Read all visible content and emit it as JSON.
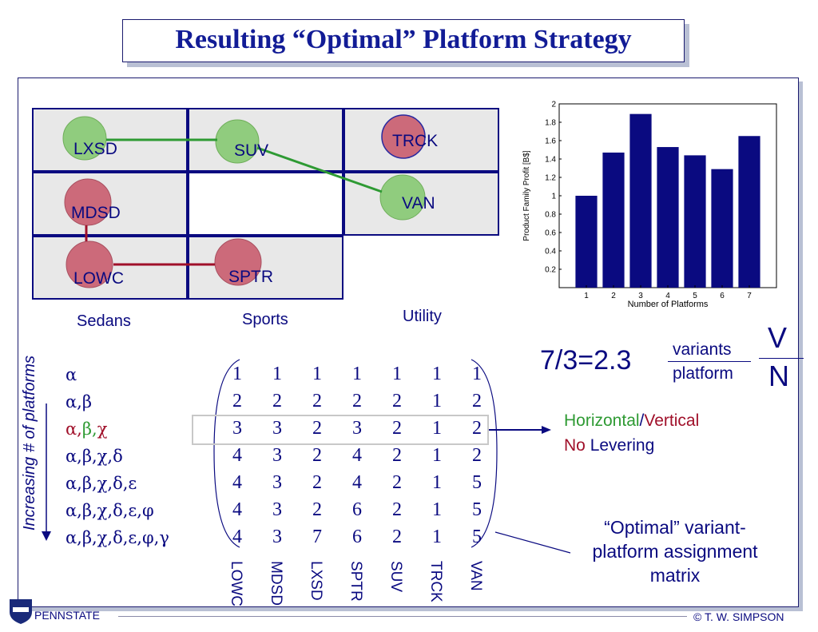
{
  "title": "Resulting “Optimal” Platform Strategy",
  "grid": {
    "nodes": [
      "LXSD",
      "SUV",
      "TRCK",
      "MDSD",
      "VAN",
      "LOWC",
      "SPTR"
    ],
    "categories": [
      "Sedans",
      "Sports",
      "Utility"
    ]
  },
  "chart_data": {
    "type": "bar",
    "categories": [
      "1",
      "2",
      "3",
      "4",
      "5",
      "6",
      "7"
    ],
    "values": [
      1.0,
      1.47,
      1.89,
      1.53,
      1.44,
      1.29,
      1.65
    ],
    "xlabel": "Number of Platforms",
    "ylabel": "Product Family Profit [B$]",
    "ylim": [
      0,
      2
    ],
    "yticks": [
      "0.2",
      "0.4",
      "0.6",
      "0.8",
      "1",
      "1.2",
      "1.4",
      "1.6",
      "1.8",
      "2"
    ],
    "bar_color": "#0a0a80"
  },
  "ratio": {
    "expr": "7/3=2.3",
    "numerator": "variants",
    "denominator": "platform",
    "v": "V",
    "n": "N"
  },
  "side_label": "Increasing # of platforms",
  "greek_rows": [
    "α",
    "α,β",
    "α,β,χ",
    "α,β,χ,δ",
    "α,β,χ,δ,ε",
    "α,β,χ,δ,ε,φ",
    "α,β,χ,δ,ε,φ,γ"
  ],
  "matrix": {
    "rows": [
      [
        "1",
        "1",
        "1",
        "1",
        "1",
        "1",
        "1"
      ],
      [
        "2",
        "2",
        "2",
        "2",
        "2",
        "1",
        "2"
      ],
      [
        "3",
        "3",
        "2",
        "3",
        "2",
        "1",
        "2"
      ],
      [
        "4",
        "3",
        "2",
        "4",
        "2",
        "1",
        "2"
      ],
      [
        "4",
        "3",
        "2",
        "4",
        "2",
        "1",
        "5"
      ],
      [
        "4",
        "3",
        "2",
        "6",
        "2",
        "1",
        "5"
      ],
      [
        "4",
        "3",
        "7",
        "6",
        "2",
        "1",
        "5"
      ]
    ],
    "columns": [
      "LOWC",
      "MDSD",
      "LXSD",
      "SPTR",
      "SUV",
      "TRCK",
      "VAN"
    ]
  },
  "callout": {
    "horizontal": "Horizontal",
    "slash": "/",
    "vertical": "Vertical",
    "no": "No",
    "levering": " Levering",
    "optimal_1": "“Optimal” variant-",
    "optimal_2": "platform assignment",
    "optimal_3": "matrix"
  },
  "footer": {
    "pennstate": "PENNSTATE",
    "copyright": "© T. W. SIMPSON"
  },
  "colors": {
    "navy": "#0a0a80",
    "green": "#2e9a33",
    "red": "#a0102a",
    "node_green": "#90cc7e",
    "node_red": "#cc6a7a"
  }
}
